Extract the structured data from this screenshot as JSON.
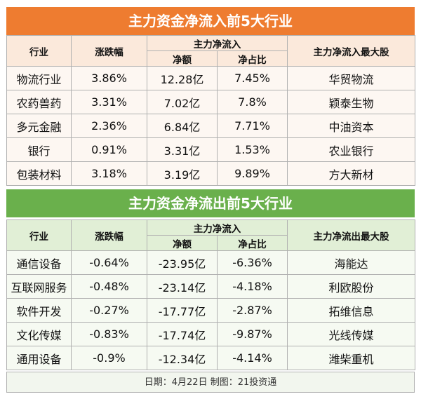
{
  "inflow": {
    "title": "主力资金净流入前5大行业",
    "headers": {
      "industry": "行业",
      "change": "涨跌幅",
      "main_net": "主力净流入",
      "net_amount": "净额",
      "net_ratio": "净占比",
      "top_stock": "主力净流入最大股"
    },
    "rows": [
      {
        "industry": "物流行业",
        "change": "3.86%",
        "net_amount": "12.28亿",
        "net_ratio": "7.45%",
        "top_stock": "华贸物流"
      },
      {
        "industry": "农药兽药",
        "change": "3.31%",
        "net_amount": "7.02亿",
        "net_ratio": "7.8%",
        "top_stock": "颖泰生物"
      },
      {
        "industry": "多元金融",
        "change": "2.36%",
        "net_amount": "6.84亿",
        "net_ratio": "7.71%",
        "top_stock": "中油资本"
      },
      {
        "industry": "银行",
        "change": "0.91%",
        "net_amount": "3.31亿",
        "net_ratio": "1.53%",
        "top_stock": "农业银行"
      },
      {
        "industry": "包装材料",
        "change": "3.18%",
        "net_amount": "3.19亿",
        "net_ratio": "9.89%",
        "top_stock": "方大新材"
      }
    ]
  },
  "outflow": {
    "title": "主力资金净流出前5大行业",
    "headers": {
      "industry": "行业",
      "change": "涨跌幅",
      "main_net": "主力净流入",
      "net_amount": "净额",
      "net_ratio": "净占比",
      "top_stock": "主力净流出最大股"
    },
    "rows": [
      {
        "industry": "通信设备",
        "change": "-0.64%",
        "net_amount": "-23.95亿",
        "net_ratio": "-6.36%",
        "top_stock": "海能达"
      },
      {
        "industry": "互联网服务",
        "change": "-0.48%",
        "net_amount": "-23.14亿",
        "net_ratio": "-4.18%",
        "top_stock": "利欧股份"
      },
      {
        "industry": "软件开发",
        "change": "-0.27%",
        "net_amount": "-17.77亿",
        "net_ratio": "-2.87%",
        "top_stock": "拓维信息"
      },
      {
        "industry": "文化传媒",
        "change": "-0.83%",
        "net_amount": "-17.74亿",
        "net_ratio": "-9.87%",
        "top_stock": "光线传媒"
      },
      {
        "industry": "通用设备",
        "change": "-0.9%",
        "net_amount": "-12.34亿",
        "net_ratio": "-4.14%",
        "top_stock": "潍柴重机"
      }
    ]
  },
  "footer": "日期：4月22日 制图：21投资通",
  "colors": {
    "inflow_accent": "#ee7c30",
    "outflow_accent": "#6ab04c"
  }
}
